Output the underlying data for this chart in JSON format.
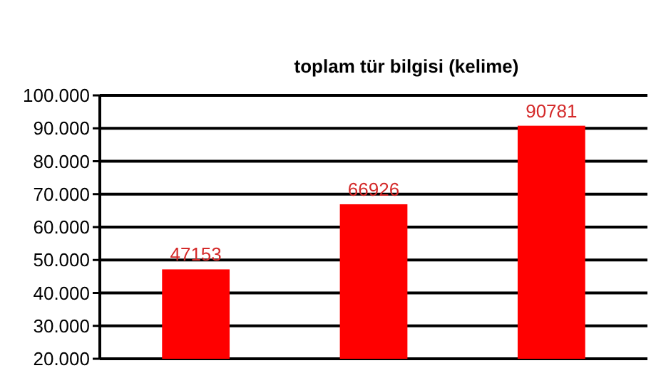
{
  "chart_data": {
    "type": "bar",
    "title": "toplam tür bilgisi (kelime)",
    "categories": [
      null,
      null,
      null
    ],
    "values": [
      47153,
      66926,
      90781
    ],
    "color": "#ff0000",
    "ylim": [
      20000,
      100000
    ],
    "yticks": [
      {
        "value": 20000,
        "label": "20.000"
      },
      {
        "value": 30000,
        "label": "30.000"
      },
      {
        "value": 40000,
        "label": "40.000"
      },
      {
        "value": 50000,
        "label": "50.000"
      },
      {
        "value": 60000,
        "label": "60.000"
      },
      {
        "value": 70000,
        "label": "70.000"
      },
      {
        "value": 80000,
        "label": "80.000"
      },
      {
        "value": 90000,
        "label": "90.000"
      },
      {
        "value": 100000,
        "label": "100.000"
      }
    ],
    "grid": "y",
    "data_labels": true,
    "tick_labels": "y"
  }
}
